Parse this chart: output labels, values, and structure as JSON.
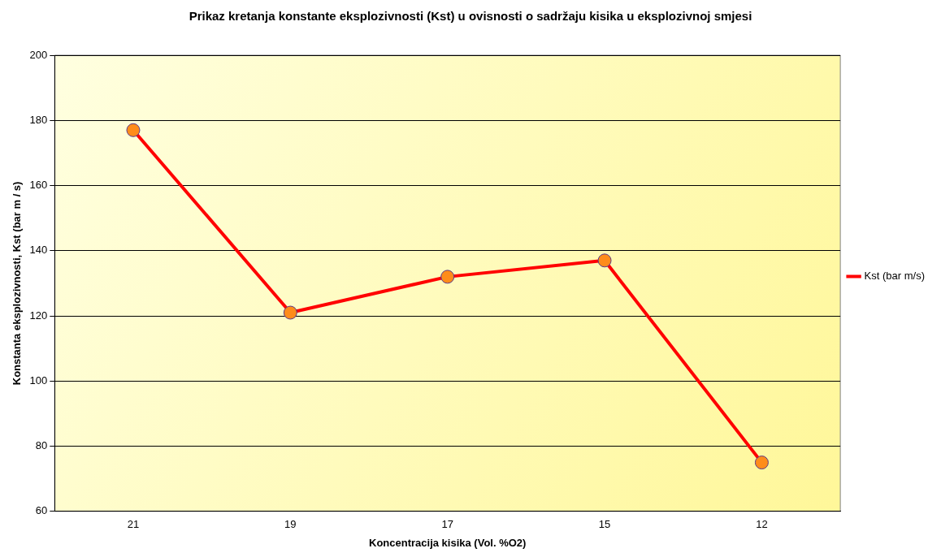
{
  "chart_data": {
    "type": "line",
    "title": "Prikaz kretanja konstante eksplozivnosti (Kst) u ovisnosti o sadržaju kisika u eksplozivnoj smjesi",
    "xlabel": "Koncentracija kisika (Vol. %O2)",
    "ylabel": "Konstanta eksplozivnosti, Kst (bar m / s)",
    "categories": [
      "21",
      "19",
      "17",
      "15",
      "12"
    ],
    "series": [
      {
        "name": "Kst (bar m/s)",
        "color": "#ff0000",
        "values": [
          177,
          121,
          132,
          137,
          75
        ]
      }
    ],
    "ylim": [
      60,
      200
    ],
    "yticks": [
      60,
      80,
      100,
      120,
      140,
      160,
      180,
      200
    ],
    "grid": "y",
    "legend": "right",
    "marker": "circle",
    "line_style": "solid"
  }
}
